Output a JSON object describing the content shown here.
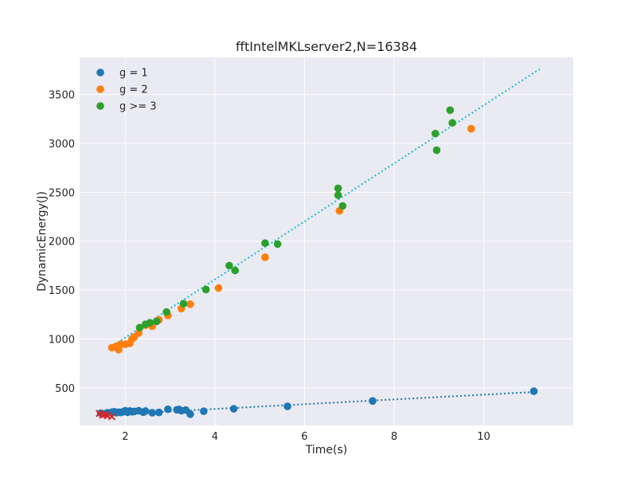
{
  "chart_data": {
    "type": "scatter",
    "title": "fftIntelMKLserver2,N=16384",
    "xlabel": "Time(s)",
    "ylabel": "DynamicEnergy(J)",
    "xlim": [
      0.98,
      12.0
    ],
    "ylim": [
      115,
      3880
    ],
    "xticks": [
      2,
      4,
      6,
      8,
      10
    ],
    "yticks": [
      500,
      1000,
      1500,
      2000,
      2500,
      3000,
      3500
    ],
    "grid": true,
    "legend_position": "top-left",
    "series": [
      {
        "name": "g = 1",
        "color": "#1f77b4",
        "marker": "circle",
        "points": [
          [
            1.45,
            240
          ],
          [
            1.55,
            235
          ],
          [
            1.6,
            245
          ],
          [
            1.7,
            250
          ],
          [
            1.75,
            255
          ],
          [
            1.8,
            245
          ],
          [
            1.85,
            250
          ],
          [
            1.9,
            248
          ],
          [
            1.95,
            255
          ],
          [
            2.0,
            265
          ],
          [
            2.05,
            250
          ],
          [
            2.1,
            262
          ],
          [
            2.15,
            255
          ],
          [
            2.2,
            258
          ],
          [
            2.3,
            265
          ],
          [
            2.4,
            250
          ],
          [
            2.45,
            262
          ],
          [
            2.6,
            245
          ],
          [
            2.75,
            248
          ],
          [
            2.95,
            280
          ],
          [
            3.15,
            275
          ],
          [
            3.2,
            278
          ],
          [
            3.25,
            265
          ],
          [
            3.35,
            272
          ],
          [
            3.45,
            230
          ],
          [
            3.75,
            260
          ],
          [
            4.42,
            285
          ],
          [
            5.62,
            310
          ],
          [
            7.52,
            365
          ],
          [
            11.12,
            465
          ]
        ]
      },
      {
        "name": "g = 2",
        "color": "#ff7f0e",
        "marker": "circle",
        "points": [
          [
            1.7,
            910
          ],
          [
            1.8,
            925
          ],
          [
            1.85,
            890
          ],
          [
            1.9,
            945
          ],
          [
            2.0,
            945
          ],
          [
            2.1,
            955
          ],
          [
            2.15,
            1000
          ],
          [
            2.2,
            1020
          ],
          [
            2.3,
            1060
          ],
          [
            2.45,
            1140
          ],
          [
            2.6,
            1130
          ],
          [
            2.75,
            1195
          ],
          [
            2.95,
            1240
          ],
          [
            3.25,
            1310
          ],
          [
            3.45,
            1355
          ],
          [
            4.08,
            1520
          ],
          [
            5.12,
            1835
          ],
          [
            6.78,
            2310
          ],
          [
            9.72,
            3150
          ]
        ]
      },
      {
        "name": "g >= 3",
        "color": "#2ca02c",
        "marker": "circle",
        "points": [
          [
            2.32,
            1115
          ],
          [
            2.45,
            1150
          ],
          [
            2.55,
            1165
          ],
          [
            2.7,
            1180
          ],
          [
            2.92,
            1275
          ],
          [
            3.3,
            1360
          ],
          [
            3.8,
            1505
          ],
          [
            4.32,
            1750
          ],
          [
            4.45,
            1700
          ],
          [
            5.12,
            1980
          ],
          [
            5.4,
            1970
          ],
          [
            6.75,
            2540
          ],
          [
            6.75,
            2470
          ],
          [
            6.85,
            2360
          ],
          [
            8.92,
            3100
          ],
          [
            8.95,
            2930
          ],
          [
            9.25,
            3340
          ],
          [
            9.3,
            3210
          ]
        ]
      },
      {
        "color": "#d62728",
        "marker": "x",
        "points": [
          [
            1.42,
            238
          ],
          [
            1.5,
            220
          ],
          [
            1.55,
            228
          ],
          [
            1.6,
            215
          ],
          [
            1.7,
            205
          ]
        ]
      }
    ],
    "fit_lines": [
      {
        "color": "#1f77b4",
        "style": "dotted",
        "points": [
          [
            1.4,
            220
          ],
          [
            11.25,
            460
          ]
        ]
      },
      {
        "color": "#17becf",
        "style": "dotted",
        "points": [
          [
            1.75,
            940
          ],
          [
            11.25,
            3760
          ]
        ]
      }
    ]
  }
}
